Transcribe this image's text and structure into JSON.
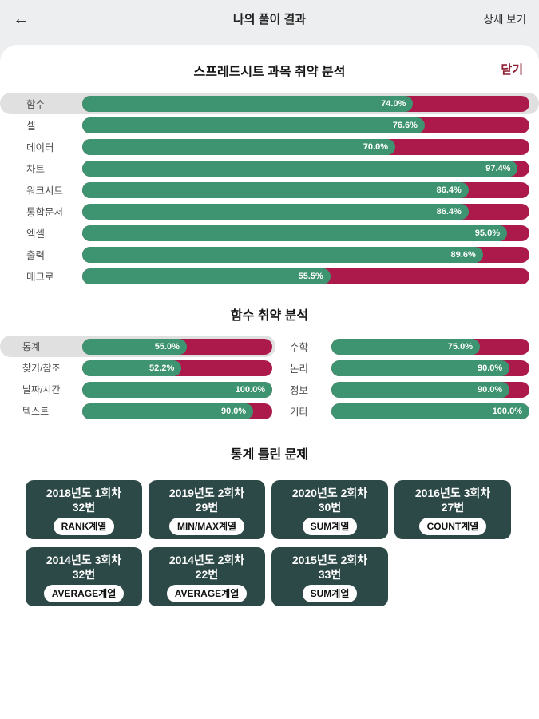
{
  "header": {
    "back_icon": "←",
    "title": "나의 풀이 결과",
    "detail_link": "상세 보기"
  },
  "panel": {
    "title": "스프레드시트 과목 취약 분석",
    "close_label": "닫기"
  },
  "colors": {
    "correct_green": "#3E9370",
    "wrong_red": "#AC1A4B",
    "highlight_gray": "#E0E0E1",
    "card_teal": "#2C4947",
    "close_red": "#8E1F33",
    "page_bg": "#ECEEF0"
  },
  "chart_data": [
    {
      "type": "bar",
      "title": "스프레드시트 과목 취약 분석",
      "orientation": "horizontal",
      "unit": "%",
      "xlim": [
        0,
        100
      ],
      "legend": "green = correct rate, red = remainder (wrong)",
      "categories": [
        "함수",
        "셀",
        "데이터",
        "차트",
        "워크시트",
        "통합문서",
        "엑셀",
        "출력",
        "매크로"
      ],
      "values": [
        74.0,
        76.6,
        70.0,
        97.4,
        86.4,
        86.4,
        95.0,
        89.6,
        55.5
      ],
      "highlighted_category": "함수"
    },
    {
      "type": "bar",
      "title": "함수 취약 분석",
      "orientation": "horizontal",
      "unit": "%",
      "xlim": [
        0,
        100
      ],
      "columns": [
        {
          "categories": [
            "통계",
            "찾기/참조",
            "날짜/시간",
            "텍스트"
          ],
          "values": [
            55.0,
            52.2,
            100.0,
            90.0
          ],
          "highlighted_category": "통계"
        },
        {
          "categories": [
            "수학",
            "논리",
            "정보",
            "기타"
          ],
          "values": [
            75.0,
            90.0,
            90.0,
            100.0
          ],
          "highlighted_category": null
        }
      ]
    }
  ],
  "wrong_problems": {
    "title": "통계 틀린 문제",
    "cards": [
      {
        "line1": "2018년도 1회차",
        "line2": "32번",
        "badge": "RANK계열"
      },
      {
        "line1": "2019년도 2회차",
        "line2": "29번",
        "badge": "MIN/MAX계열"
      },
      {
        "line1": "2020년도 2회차",
        "line2": "30번",
        "badge": "SUM계열"
      },
      {
        "line1": "2016년도 3회차",
        "line2": "27번",
        "badge": "COUNT계열"
      },
      {
        "line1": "2014년도 3회차",
        "line2": "32번",
        "badge": "AVERAGE계열"
      },
      {
        "line1": "2014년도 2회차",
        "line2": "22번",
        "badge": "AVERAGE계열"
      },
      {
        "line1": "2015년도 2회차",
        "line2": "33번",
        "badge": "SUM계열"
      }
    ]
  }
}
